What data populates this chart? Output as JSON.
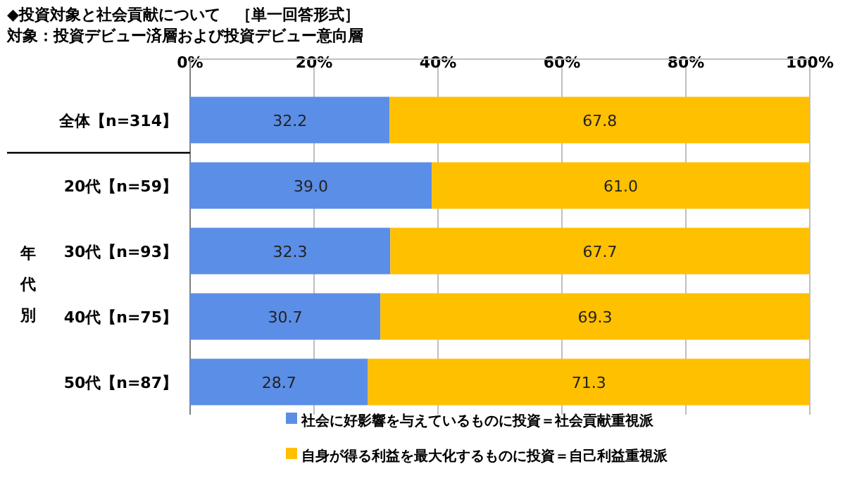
{
  "chart_data": {
    "type": "bar",
    "orientation": "horizontal",
    "stacked": true,
    "title": "◆投資対象と社会貢献について　［単一回答形式］",
    "subtitle": "対象：投資デビュー済層および投資デビュー意向層",
    "categories": [
      "全体【n=314】",
      "20代【n=59】",
      "30代【n=93】",
      "40代【n=75】",
      "50代【n=87】"
    ],
    "series": [
      {
        "name": "社会に好影響を与えているものに投資＝社会貢献重視派",
        "color": "#5b8ee6",
        "values": [
          32.2,
          39.0,
          32.3,
          30.7,
          28.7
        ],
        "value_labels": [
          "32.2",
          "39.0",
          "32.3",
          "30.7",
          "28.7"
        ]
      },
      {
        "name": "自身が得る利益を最大化するものに投資＝自己利益重視派",
        "color": "#ffc000",
        "values": [
          67.8,
          61.0,
          67.7,
          69.3,
          71.3
        ],
        "value_labels": [
          "67.8",
          "61.0",
          "67.7",
          "69.3",
          "71.3"
        ]
      }
    ],
    "xlim": [
      0,
      100
    ],
    "xticks": [
      {
        "value": 0,
        "label": "0%"
      },
      {
        "value": 20,
        "label": "20%"
      },
      {
        "value": 40,
        "label": "40%"
      },
      {
        "value": 60,
        "label": "60%"
      },
      {
        "value": 80,
        "label": "80%"
      },
      {
        "value": 100,
        "label": "100%"
      }
    ],
    "grid": "x",
    "legend": "bottom",
    "annotations": [
      "年代別"
    ]
  }
}
